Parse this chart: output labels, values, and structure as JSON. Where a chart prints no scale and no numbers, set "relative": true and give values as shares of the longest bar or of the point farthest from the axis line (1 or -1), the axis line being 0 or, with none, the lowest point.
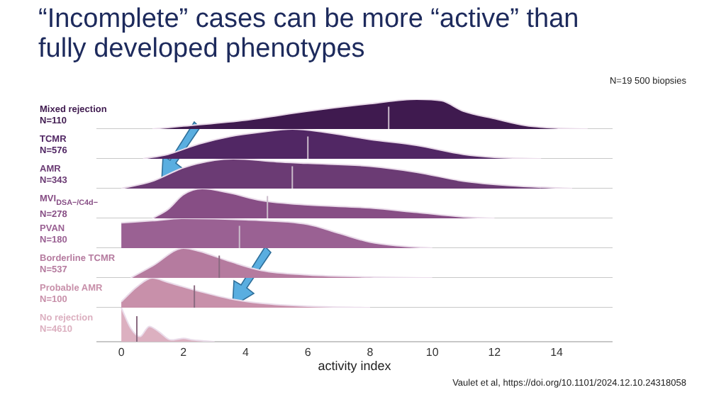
{
  "chart_data": [
    {
      "type": "area",
      "title": "“Incomplete” cases can be more “active” than fully developed phenotypes",
      "annotations": [
        "N=19 500 biopsies"
      ],
      "ylabel": "Mixed rejection\nN=110",
      "relative": true,
      "xlim": [
        -0.8,
        15.8
      ],
      "tick_labels": false,
      "color": "#3f1a4f",
      "x": [
        1,
        2,
        4,
        6,
        8,
        9.5,
        10.3,
        11,
        12,
        13,
        14,
        15
      ],
      "values": [
        0,
        0.1,
        0.3,
        0.6,
        0.85,
        1,
        0.95,
        0.6,
        0.35,
        0.12,
        0.03,
        0
      ],
      "ref_lines": [
        {
          "axis": "x",
          "value": 8.6,
          "color": "#cbbccb"
        }
      ]
    },
    {
      "type": "area",
      "ylabel": "TCMR\nN=576",
      "relative": true,
      "xlim": [
        -0.8,
        15.8
      ],
      "tick_labels": false,
      "color": "#512764",
      "x": [
        0.7,
        1.5,
        2.5,
        3.5,
        4.5,
        5.5,
        6.5,
        8,
        9.5,
        11,
        12,
        13.5
      ],
      "values": [
        0,
        0.15,
        0.5,
        0.75,
        0.9,
        1,
        0.9,
        0.65,
        0.45,
        0.15,
        0.05,
        0
      ],
      "ref_lines": [
        {
          "axis": "x",
          "value": 6,
          "color": "#cbbccb"
        }
      ]
    },
    {
      "type": "area",
      "ylabel": "AMR\nN=343",
      "relative": true,
      "xlim": [
        -0.8,
        15.8
      ],
      "tick_labels": false,
      "color": "#6b3b74",
      "x": [
        0,
        1,
        2,
        3,
        3.6,
        5,
        6,
        8,
        9.5,
        11,
        12.5,
        14.5
      ],
      "values": [
        0,
        0.25,
        0.7,
        0.95,
        1,
        0.9,
        0.85,
        0.75,
        0.55,
        0.25,
        0.1,
        0
      ],
      "ref_lines": [
        {
          "axis": "x",
          "value": 5.5,
          "color": "#cbbccb"
        }
      ]
    },
    {
      "type": "area",
      "ylabel": "MVI$_{DSA−/C4d−}$\nN=278",
      "relative": true,
      "xlim": [
        -0.8,
        15.8
      ],
      "tick_labels": false,
      "color": "#874e85",
      "x": [
        1,
        1.5,
        2,
        2.6,
        3.5,
        4.5,
        6,
        8,
        9.5,
        11,
        12
      ],
      "values": [
        0,
        0.3,
        0.8,
        1,
        0.85,
        0.6,
        0.45,
        0.35,
        0.2,
        0.05,
        0
      ],
      "ref_lines": [
        {
          "axis": "x",
          "value": 4.7,
          "color": "#cbbccb"
        }
      ]
    },
    {
      "type": "area",
      "ylabel": "PVAN\nN=180",
      "relative": true,
      "xlim": [
        -0.8,
        15.8
      ],
      "tick_labels": false,
      "color": "#9a6193",
      "x": [
        0,
        1,
        2,
        4,
        6,
        7,
        8,
        9,
        10
      ],
      "values": [
        0.85,
        0.92,
        1,
        0.95,
        0.8,
        0.5,
        0.2,
        0.07,
        0
      ],
      "ref_lines": [
        {
          "axis": "x",
          "value": 3.8,
          "color": "#cbbccb"
        }
      ]
    },
    {
      "type": "area",
      "ylabel": "Borderline TCMR\nN=537",
      "relative": true,
      "xlim": [
        -0.8,
        15.8
      ],
      "tick_labels": false,
      "color": "#b57b9f",
      "x": [
        0.3,
        1,
        2,
        2.5,
        3.5,
        4.5,
        6,
        8,
        10
      ],
      "values": [
        0,
        0.4,
        1,
        0.9,
        0.55,
        0.25,
        0.1,
        0.03,
        0
      ],
      "ref_lines": [
        {
          "axis": "x",
          "value": 3.15,
          "color": "#8a6a80"
        }
      ]
    },
    {
      "type": "area",
      "ylabel": "Probable AMR\nN=100",
      "relative": true,
      "xlim": [
        -0.8,
        15.8
      ],
      "tick_labels": false,
      "color": "#c890aa",
      "x": [
        0,
        0.5,
        1,
        1.5,
        2.5,
        3.5,
        4.5,
        6,
        8
      ],
      "values": [
        0.2,
        0.7,
        1,
        0.85,
        0.55,
        0.3,
        0.15,
        0.05,
        0
      ],
      "ref_lines": [
        {
          "axis": "x",
          "value": 2.35,
          "color": "#8a6a80"
        }
      ]
    },
    {
      "type": "area",
      "ylabel": "No rejection\nN=4610",
      "xlabel": "activity index",
      "annotations": [
        "Vaulet et al, https://doi.org/10.1101/2024.12.10.24318058"
      ],
      "relative": true,
      "xlim": [
        -0.8,
        15.8
      ],
      "xticks": [
        0,
        2,
        4,
        6,
        8,
        10,
        12,
        14
      ],
      "tick_labels": "x",
      "color": "#dcb0c0",
      "x": [
        0,
        0.3,
        0.6,
        0.9,
        1.2,
        1.6,
        2,
        2.3,
        3
      ],
      "values": [
        1,
        0.4,
        0.15,
        0.45,
        0.3,
        0.05,
        0.1,
        0.05,
        0
      ],
      "ref_lines": [
        {
          "axis": "x",
          "value": 0.5,
          "color": "#8a6a80"
        }
      ]
    }
  ]
}
